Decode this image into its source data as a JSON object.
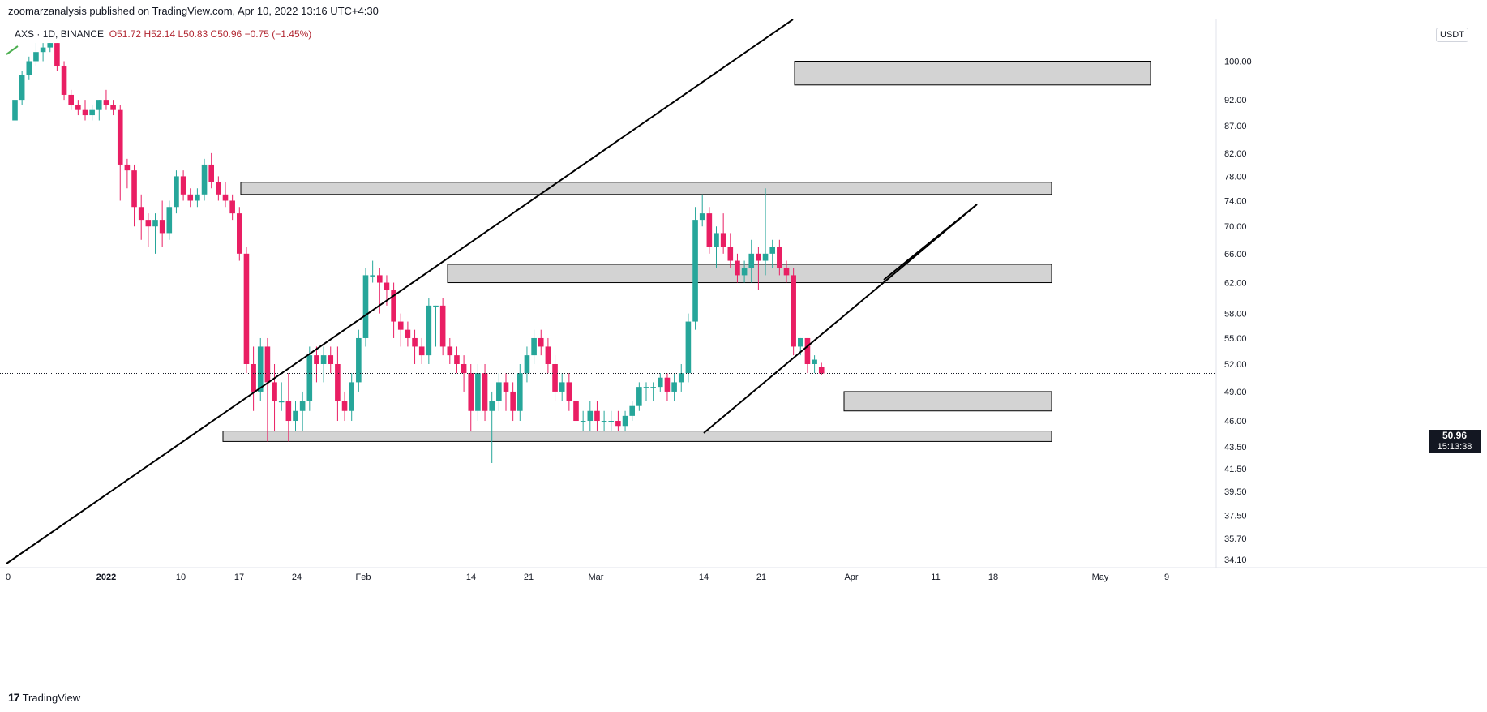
{
  "header": {
    "publisher": "zoomarzanalysis published on TradingView.com, Apr 10, 2022 13:16 UTC+4:30"
  },
  "legend": {
    "symbol": "AXS",
    "interval_exchange": "1D, BINANCE",
    "open_label": "O51.72",
    "high_label": "H52.14",
    "low_label": "L50.83",
    "close_label": "C50.96",
    "change_label": "−0.75 (−1.45%)"
  },
  "price_scale": {
    "currency": "USDT",
    "current_price": "50.96",
    "countdown": "15:13:38"
  },
  "footer": {
    "brand": "TradingView"
  },
  "colors": {
    "up": "#26a69a",
    "down": "#e91e63",
    "zone_fill": "#d3d3d3",
    "line": "#000000"
  },
  "chart_data": {
    "type": "candlestick",
    "symbol": "AXSUSDT",
    "interval": "1D",
    "y_ticks": [
      "100.00",
      "92.00",
      "87.00",
      "82.00",
      "78.00",
      "74.00",
      "70.00",
      "66.00",
      "62.00",
      "58.00",
      "55.00",
      "52.00",
      "49.00",
      "46.00",
      "43.50",
      "41.50",
      "39.50",
      "37.50",
      "35.70",
      "34.10"
    ],
    "x_ticks": [
      "0",
      "2022",
      "10",
      "17",
      "24",
      "Feb",
      "14",
      "21",
      "Mar",
      "14",
      "21",
      "Apr",
      "11",
      "18",
      "May",
      "9"
    ],
    "candles": [
      {
        "o": 88,
        "h": 93,
        "l": 83,
        "c": 92
      },
      {
        "o": 92,
        "h": 98,
        "l": 91,
        "c": 97
      },
      {
        "o": 97,
        "h": 101,
        "l": 96,
        "c": 100
      },
      {
        "o": 100,
        "h": 104,
        "l": 99,
        "c": 102
      },
      {
        "o": 102,
        "h": 104,
        "l": 100,
        "c": 103
      },
      {
        "o": 103,
        "h": 104,
        "l": 102,
        "c": 104
      },
      {
        "o": 104,
        "h": 104,
        "l": 98,
        "c": 99
      },
      {
        "o": 99,
        "h": 100,
        "l": 92,
        "c": 93
      },
      {
        "o": 93,
        "h": 94,
        "l": 90,
        "c": 91
      },
      {
        "o": 91,
        "h": 92,
        "l": 89,
        "c": 90
      },
      {
        "o": 90,
        "h": 92,
        "l": 88,
        "c": 89
      },
      {
        "o": 89,
        "h": 91,
        "l": 88,
        "c": 90
      },
      {
        "o": 90,
        "h": 92,
        "l": 88,
        "c": 92
      },
      {
        "o": 92,
        "h": 94,
        "l": 90,
        "c": 91
      },
      {
        "o": 91,
        "h": 92,
        "l": 89,
        "c": 90
      },
      {
        "o": 90,
        "h": 91,
        "l": 74,
        "c": 80
      },
      {
        "o": 80,
        "h": 81,
        "l": 76,
        "c": 79
      },
      {
        "o": 79,
        "h": 80,
        "l": 70,
        "c": 73
      },
      {
        "o": 73,
        "h": 75,
        "l": 68,
        "c": 71
      },
      {
        "o": 71,
        "h": 72,
        "l": 67,
        "c": 70
      },
      {
        "o": 70,
        "h": 72,
        "l": 66,
        "c": 71
      },
      {
        "o": 71,
        "h": 74,
        "l": 67,
        "c": 69
      },
      {
        "o": 69,
        "h": 74,
        "l": 68,
        "c": 73
      },
      {
        "o": 73,
        "h": 79,
        "l": 72,
        "c": 78
      },
      {
        "o": 78,
        "h": 79,
        "l": 74,
        "c": 75
      },
      {
        "o": 75,
        "h": 76,
        "l": 73,
        "c": 74
      },
      {
        "o": 74,
        "h": 76,
        "l": 73,
        "c": 75
      },
      {
        "o": 75,
        "h": 81,
        "l": 74,
        "c": 80
      },
      {
        "o": 80,
        "h": 82,
        "l": 76,
        "c": 77
      },
      {
        "o": 77,
        "h": 78,
        "l": 74,
        "c": 75
      },
      {
        "o": 75,
        "h": 77,
        "l": 73,
        "c": 74
      },
      {
        "o": 74,
        "h": 75,
        "l": 71,
        "c": 72
      },
      {
        "o": 72,
        "h": 73,
        "l": 65,
        "c": 66
      },
      {
        "o": 66,
        "h": 67,
        "l": 51,
        "c": 52
      },
      {
        "o": 52,
        "h": 54,
        "l": 47,
        "c": 49
      },
      {
        "o": 49,
        "h": 55,
        "l": 48,
        "c": 54
      },
      {
        "o": 54,
        "h": 55,
        "l": 44,
        "c": 50
      },
      {
        "o": 50,
        "h": 52,
        "l": 45,
        "c": 48
      },
      {
        "o": 48,
        "h": 50,
        "l": 47,
        "c": 48
      },
      {
        "o": 48,
        "h": 51,
        "l": 44,
        "c": 46
      },
      {
        "o": 46,
        "h": 48,
        "l": 45,
        "c": 47
      },
      {
        "o": 47,
        "h": 49,
        "l": 45,
        "c": 48
      },
      {
        "o": 48,
        "h": 54,
        "l": 47,
        "c": 53
      },
      {
        "o": 53,
        "h": 54,
        "l": 50,
        "c": 52
      },
      {
        "o": 52,
        "h": 54,
        "l": 50,
        "c": 53
      },
      {
        "o": 53,
        "h": 54,
        "l": 51,
        "c": 52
      },
      {
        "o": 52,
        "h": 54,
        "l": 46,
        "c": 48
      },
      {
        "o": 48,
        "h": 49,
        "l": 46,
        "c": 47
      },
      {
        "o": 47,
        "h": 51,
        "l": 46,
        "c": 50
      },
      {
        "o": 50,
        "h": 56,
        "l": 49,
        "c": 55
      },
      {
        "o": 55,
        "h": 64,
        "l": 54,
        "c": 63
      },
      {
        "o": 63,
        "h": 65,
        "l": 62,
        "c": 63
      },
      {
        "o": 63,
        "h": 64,
        "l": 58,
        "c": 62
      },
      {
        "o": 62,
        "h": 63,
        "l": 59,
        "c": 61
      },
      {
        "o": 61,
        "h": 62,
        "l": 55,
        "c": 57
      },
      {
        "o": 57,
        "h": 58,
        "l": 54,
        "c": 56
      },
      {
        "o": 56,
        "h": 57,
        "l": 54,
        "c": 55
      },
      {
        "o": 55,
        "h": 56,
        "l": 52,
        "c": 54
      },
      {
        "o": 54,
        "h": 55,
        "l": 52,
        "c": 53
      },
      {
        "o": 53,
        "h": 60,
        "l": 52,
        "c": 59
      },
      {
        "o": 59,
        "h": 59,
        "l": 54,
        "c": 59
      },
      {
        "o": 59,
        "h": 60,
        "l": 53,
        "c": 54
      },
      {
        "o": 54,
        "h": 55,
        "l": 52,
        "c": 53
      },
      {
        "o": 53,
        "h": 54,
        "l": 51,
        "c": 52
      },
      {
        "o": 52,
        "h": 53,
        "l": 49,
        "c": 51
      },
      {
        "o": 51,
        "h": 52,
        "l": 45,
        "c": 47
      },
      {
        "o": 47,
        "h": 52,
        "l": 46,
        "c": 51
      },
      {
        "o": 51,
        "h": 52,
        "l": 46,
        "c": 47
      },
      {
        "o": 47,
        "h": 49,
        "l": 42,
        "c": 48
      },
      {
        "o": 48,
        "h": 51,
        "l": 47,
        "c": 50
      },
      {
        "o": 50,
        "h": 51,
        "l": 47,
        "c": 49
      },
      {
        "o": 49,
        "h": 50,
        "l": 46,
        "c": 47
      },
      {
        "o": 47,
        "h": 52,
        "l": 46,
        "c": 51
      },
      {
        "o": 51,
        "h": 54,
        "l": 50,
        "c": 53
      },
      {
        "o": 53,
        "h": 56,
        "l": 52,
        "c": 55
      },
      {
        "o": 55,
        "h": 56,
        "l": 53,
        "c": 54
      },
      {
        "o": 54,
        "h": 55,
        "l": 51,
        "c": 52
      },
      {
        "o": 52,
        "h": 53,
        "l": 48,
        "c": 49
      },
      {
        "o": 49,
        "h": 51,
        "l": 48,
        "c": 50
      },
      {
        "o": 50,
        "h": 51,
        "l": 47,
        "c": 48
      },
      {
        "o": 48,
        "h": 49,
        "l": 45,
        "c": 46
      },
      {
        "o": 46,
        "h": 47,
        "l": 45,
        "c": 46
      },
      {
        "o": 46,
        "h": 48,
        "l": 45,
        "c": 47
      },
      {
        "o": 47,
        "h": 48,
        "l": 45,
        "c": 46
      },
      {
        "o": 46,
        "h": 47,
        "l": 45,
        "c": 46
      },
      {
        "o": 46,
        "h": 47,
        "l": 45,
        "c": 46
      },
      {
        "o": 46,
        "h": 47,
        "l": 45,
        "c": 45.5
      },
      {
        "o": 45.5,
        "h": 47,
        "l": 45,
        "c": 46.5
      },
      {
        "o": 46.5,
        "h": 48,
        "l": 46,
        "c": 47.5
      },
      {
        "o": 47.5,
        "h": 50,
        "l": 47,
        "c": 49.5
      },
      {
        "o": 49.5,
        "h": 50,
        "l": 48,
        "c": 49.5
      },
      {
        "o": 49.5,
        "h": 50,
        "l": 48,
        "c": 49.5
      },
      {
        "o": 49.5,
        "h": 51,
        "l": 49,
        "c": 50.5
      },
      {
        "o": 50.5,
        "h": 51,
        "l": 48,
        "c": 49
      },
      {
        "o": 49,
        "h": 51,
        "l": 48,
        "c": 50
      },
      {
        "o": 50,
        "h": 52,
        "l": 49,
        "c": 51
      },
      {
        "o": 51,
        "h": 58,
        "l": 50,
        "c": 57
      },
      {
        "o": 57,
        "h": 73,
        "l": 56,
        "c": 71
      },
      {
        "o": 71,
        "h": 75,
        "l": 70,
        "c": 72
      },
      {
        "o": 72,
        "h": 73,
        "l": 66,
        "c": 67
      },
      {
        "o": 67,
        "h": 70,
        "l": 64,
        "c": 69
      },
      {
        "o": 69,
        "h": 72,
        "l": 66,
        "c": 67
      },
      {
        "o": 67,
        "h": 69,
        "l": 64,
        "c": 65
      },
      {
        "o": 65,
        "h": 66,
        "l": 62,
        "c": 63
      },
      {
        "o": 63,
        "h": 65,
        "l": 62,
        "c": 64
      },
      {
        "o": 64,
        "h": 68,
        "l": 62,
        "c": 66
      },
      {
        "o": 66,
        "h": 67,
        "l": 61,
        "c": 65
      },
      {
        "o": 65,
        "h": 76,
        "l": 63,
        "c": 66
      },
      {
        "o": 66,
        "h": 68,
        "l": 64,
        "c": 67
      },
      {
        "o": 67,
        "h": 68,
        "l": 63,
        "c": 64
      },
      {
        "o": 64,
        "h": 65,
        "l": 62,
        "c": 63
      },
      {
        "o": 63,
        "h": 64,
        "l": 53,
        "c": 54
      },
      {
        "o": 54,
        "h": 55,
        "l": 53,
        "c": 55
      },
      {
        "o": 55,
        "h": 55,
        "l": 51,
        "c": 52
      },
      {
        "o": 52,
        "h": 53,
        "l": 51,
        "c": 52.5
      },
      {
        "o": 51.72,
        "h": 52.14,
        "l": 50.83,
        "c": 50.96
      }
    ],
    "zones": [
      {
        "low": 95,
        "high": 100
      },
      {
        "low": 75,
        "high": 77
      },
      {
        "low": 62,
        "high": 64.5
      },
      {
        "low": 47,
        "high": 49
      },
      {
        "low": 44,
        "high": 45
      }
    ],
    "trendlines": [
      {
        "from": [
          -1,
          33.5
        ],
        "to": [
          118,
          120
        ]
      },
      {
        "from": [
          86,
          44
        ],
        "to": [
          120,
          74
        ]
      },
      {
        "from": [
          83,
          45
        ],
        "to": [
          120,
          120
        ]
      }
    ]
  }
}
